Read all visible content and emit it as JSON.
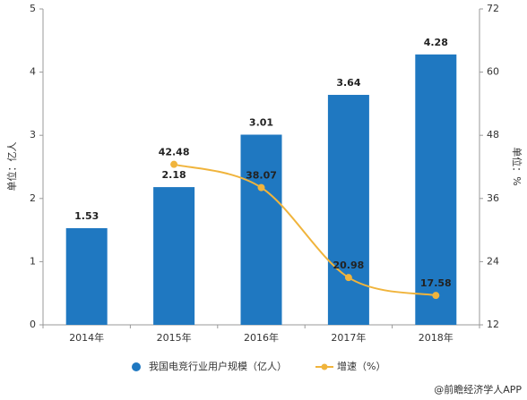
{
  "chart_data": {
    "type": "bar_line",
    "categories": [
      "2014年",
      "2015年",
      "2016年",
      "2017年",
      "2018年"
    ],
    "series": [
      {
        "name": "我国电竞行业用户规模（亿人）",
        "color": "#1f78c1",
        "type": "bar",
        "values": [
          1.53,
          2.18,
          3.01,
          3.64,
          4.28
        ]
      },
      {
        "name": "增速（%）",
        "color": "#f0b43c",
        "type": "line",
        "axis": "y2",
        "values": [
          null,
          42.48,
          38.07,
          20.98,
          17.58
        ]
      }
    ],
    "ylabel": "单位：亿人",
    "y2label": "单位：%",
    "ylim": [
      0,
      5
    ],
    "yticks": [
      0,
      1,
      2,
      3,
      4,
      5
    ],
    "y2lim": [
      12,
      72
    ],
    "y2ticks": [
      12,
      24,
      36,
      48,
      60,
      72
    ],
    "source": "@前瞻经济学人APP"
  }
}
